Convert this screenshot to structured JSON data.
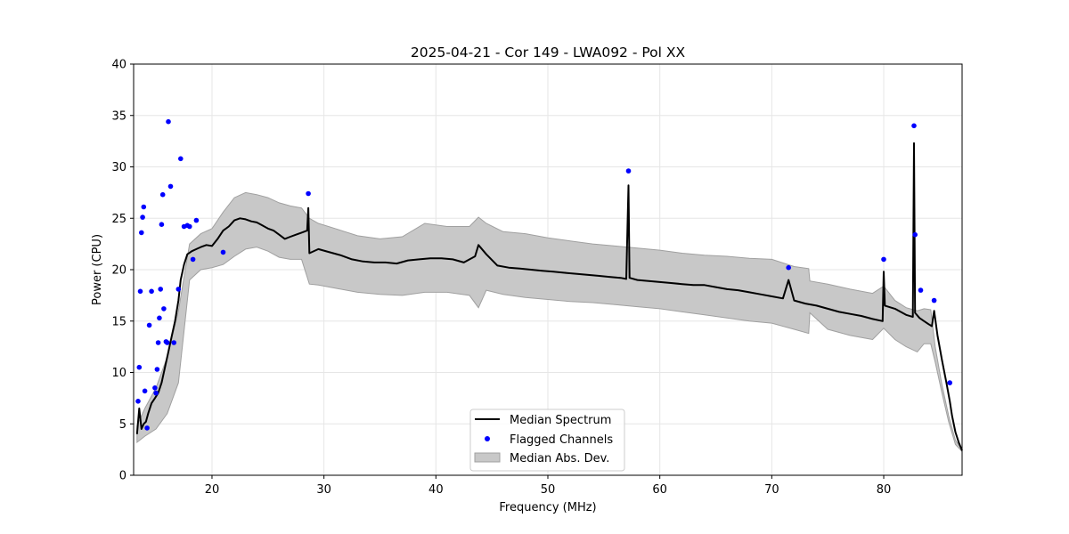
{
  "chart_data": {
    "type": "line",
    "title": "2025-04-21 - Cor 149 - LWA092 - Pol XX",
    "xlabel": "Frequency (MHz)",
    "ylabel": "Power (CPU)",
    "xlim": [
      13.0,
      87.0
    ],
    "ylim": [
      0,
      40
    ],
    "xticks": [
      20,
      30,
      40,
      50,
      60,
      70,
      80
    ],
    "yticks": [
      0,
      5,
      10,
      15,
      20,
      25,
      30,
      35,
      40
    ],
    "grid": true,
    "legend_position": "bottom-center",
    "colors": {
      "median": "#000000",
      "flagged": "#0000ff",
      "mad_fill": "#c8c8c8",
      "mad_edge": "#a0a0a0",
      "grid": "#e6e6e6"
    },
    "series": [
      {
        "name": "Median Spectrum",
        "kind": "line",
        "x": [
          13.3,
          13.5,
          13.7,
          13.9,
          14.1,
          14.3,
          14.6,
          14.9,
          15.2,
          15.5,
          15.8,
          16.1,
          16.4,
          16.7,
          17.0,
          17.2,
          17.5,
          17.8,
          18.2,
          18.6,
          19.0,
          19.5,
          20.0,
          20.5,
          21.0,
          21.5,
          22.0,
          22.5,
          23.0,
          23.5,
          24.0,
          24.5,
          25.0,
          25.5,
          26.0,
          26.5,
          27.0,
          27.5,
          28.0,
          28.5,
          28.6,
          28.7,
          29.5,
          30.5,
          31.5,
          32.5,
          33.5,
          34.5,
          35.5,
          36.5,
          37.5,
          38.5,
          39.5,
          40.5,
          41.5,
          42.5,
          43.5,
          43.8,
          44.5,
          45.5,
          46.5,
          47.5,
          48.5,
          49.5,
          50.5,
          51.5,
          52.5,
          53.5,
          54.5,
          55.5,
          56.5,
          57.0,
          57.2,
          57.3,
          58.0,
          59.0,
          60.0,
          61.0,
          62.0,
          63.0,
          64.0,
          65.0,
          66.0,
          67.0,
          68.0,
          69.0,
          70.0,
          71.0,
          71.5,
          72.0,
          73.0,
          74.0,
          75.0,
          76.0,
          77.0,
          78.0,
          79.0,
          79.9,
          80.0,
          80.1,
          81.0,
          82.0,
          82.6,
          82.7,
          82.8,
          83.2,
          83.6,
          84.0,
          84.3,
          84.5,
          84.8,
          85.2,
          85.6,
          85.9,
          86.1,
          86.4,
          86.7,
          87.0
        ],
        "y": [
          4.0,
          6.5,
          4.5,
          5.0,
          5.2,
          6.0,
          7.0,
          7.5,
          8.0,
          9.0,
          10.5,
          12.0,
          13.5,
          15.0,
          17.0,
          19.0,
          20.5,
          21.5,
          21.8,
          22.0,
          22.2,
          22.4,
          22.3,
          23.0,
          23.8,
          24.2,
          24.8,
          25.0,
          24.9,
          24.7,
          24.6,
          24.3,
          24.0,
          23.8,
          23.4,
          23.0,
          23.2,
          23.4,
          23.6,
          23.8,
          26.0,
          21.6,
          22.0,
          21.7,
          21.4,
          21.0,
          20.8,
          20.7,
          20.7,
          20.6,
          20.9,
          21.0,
          21.1,
          21.1,
          21.0,
          20.7,
          21.3,
          22.4,
          21.5,
          20.4,
          20.2,
          20.1,
          20.0,
          19.9,
          19.8,
          19.7,
          19.6,
          19.5,
          19.4,
          19.3,
          19.2,
          19.1,
          28.2,
          19.2,
          19.0,
          18.9,
          18.8,
          18.7,
          18.6,
          18.5,
          18.5,
          18.3,
          18.1,
          18.0,
          17.8,
          17.6,
          17.4,
          17.2,
          19.0,
          17.0,
          16.7,
          16.5,
          16.2,
          15.9,
          15.7,
          15.5,
          15.2,
          15.0,
          19.8,
          16.5,
          16.2,
          15.6,
          15.4,
          32.3,
          15.8,
          15.3,
          15.0,
          14.7,
          14.5,
          16.0,
          13.6,
          11.2,
          9.0,
          7.2,
          5.8,
          4.2,
          3.2,
          2.4
        ]
      },
      {
        "name": "Flagged Channels",
        "kind": "scatter",
        "x": [
          13.4,
          13.5,
          13.6,
          13.7,
          13.8,
          13.9,
          14.0,
          14.2,
          14.4,
          14.6,
          14.9,
          15.0,
          15.1,
          15.2,
          15.3,
          15.4,
          15.5,
          15.6,
          15.7,
          15.9,
          16.0,
          16.1,
          16.3,
          16.6,
          17.0,
          17.2,
          17.5,
          17.8,
          18.0,
          18.3,
          18.6,
          21.0,
          28.6,
          57.2,
          71.5,
          80.0,
          82.7,
          82.8,
          83.3,
          84.5,
          85.9
        ],
        "y": [
          7.2,
          10.5,
          17.9,
          23.6,
          25.1,
          26.1,
          8.2,
          4.6,
          14.6,
          17.9,
          8.5,
          8.0,
          10.3,
          12.9,
          15.3,
          18.1,
          24.4,
          27.3,
          16.2,
          13.0,
          12.9,
          34.4,
          28.1,
          12.9,
          18.1,
          30.8,
          24.2,
          24.3,
          24.2,
          21.0,
          24.8,
          21.7,
          27.4,
          29.6,
          20.2,
          21.0,
          34.0,
          23.4,
          18.0,
          17.0,
          9.0
        ]
      },
      {
        "name": "Median Abs. Dev.",
        "kind": "band",
        "x": [
          13.3,
          14.0,
          15.0,
          16.0,
          17.0,
          18.0,
          19.0,
          20.0,
          21.0,
          22.0,
          23.0,
          24.0,
          25.0,
          26.0,
          27.0,
          28.0,
          28.7,
          29.5,
          31.0,
          33.0,
          35.0,
          37.0,
          39.0,
          41.0,
          43.0,
          43.8,
          44.5,
          46.0,
          48.0,
          50.0,
          52.0,
          54.0,
          56.0,
          58.0,
          60.0,
          62.0,
          64.0,
          66.0,
          68.0,
          70.0,
          72.0,
          73.3,
          73.4,
          75.0,
          77.0,
          79.0,
          80.0,
          81.0,
          82.0,
          83.0,
          83.6,
          84.2,
          84.6,
          85.2,
          85.8,
          86.4,
          87.0
        ],
        "lower": [
          3.2,
          3.8,
          4.5,
          6.0,
          9.0,
          19.0,
          20.0,
          20.2,
          20.5,
          21.3,
          22.0,
          22.2,
          21.8,
          21.2,
          21.0,
          21.0,
          18.6,
          18.5,
          18.2,
          17.8,
          17.6,
          17.5,
          17.8,
          17.8,
          17.5,
          16.3,
          18.0,
          17.6,
          17.3,
          17.1,
          16.9,
          16.8,
          16.6,
          16.4,
          16.2,
          15.9,
          15.6,
          15.3,
          15.0,
          14.8,
          14.2,
          13.8,
          15.8,
          14.2,
          13.6,
          13.2,
          14.3,
          13.2,
          12.5,
          12.0,
          12.8,
          12.8,
          11.0,
          8.0,
          5.2,
          3.0,
          2.3
        ],
        "upper": [
          4.8,
          6.5,
          8.5,
          11.5,
          16.0,
          22.5,
          23.5,
          24.0,
          25.6,
          27.0,
          27.5,
          27.3,
          27.0,
          26.5,
          26.2,
          26.0,
          25.0,
          24.5,
          24.0,
          23.3,
          23.0,
          23.2,
          24.5,
          24.2,
          24.2,
          25.1,
          24.5,
          23.7,
          23.5,
          23.1,
          22.8,
          22.5,
          22.3,
          22.1,
          21.9,
          21.6,
          21.4,
          21.3,
          21.1,
          21.0,
          20.3,
          20.1,
          18.9,
          18.6,
          18.1,
          17.7,
          18.4,
          17.0,
          16.3,
          16.0,
          16.2,
          16.1,
          12.5,
          8.8,
          5.8,
          3.4,
          2.5
        ]
      }
    ],
    "legend": {
      "entries": [
        "Median Spectrum",
        "Flagged Channels",
        "Median Abs. Dev."
      ]
    }
  }
}
